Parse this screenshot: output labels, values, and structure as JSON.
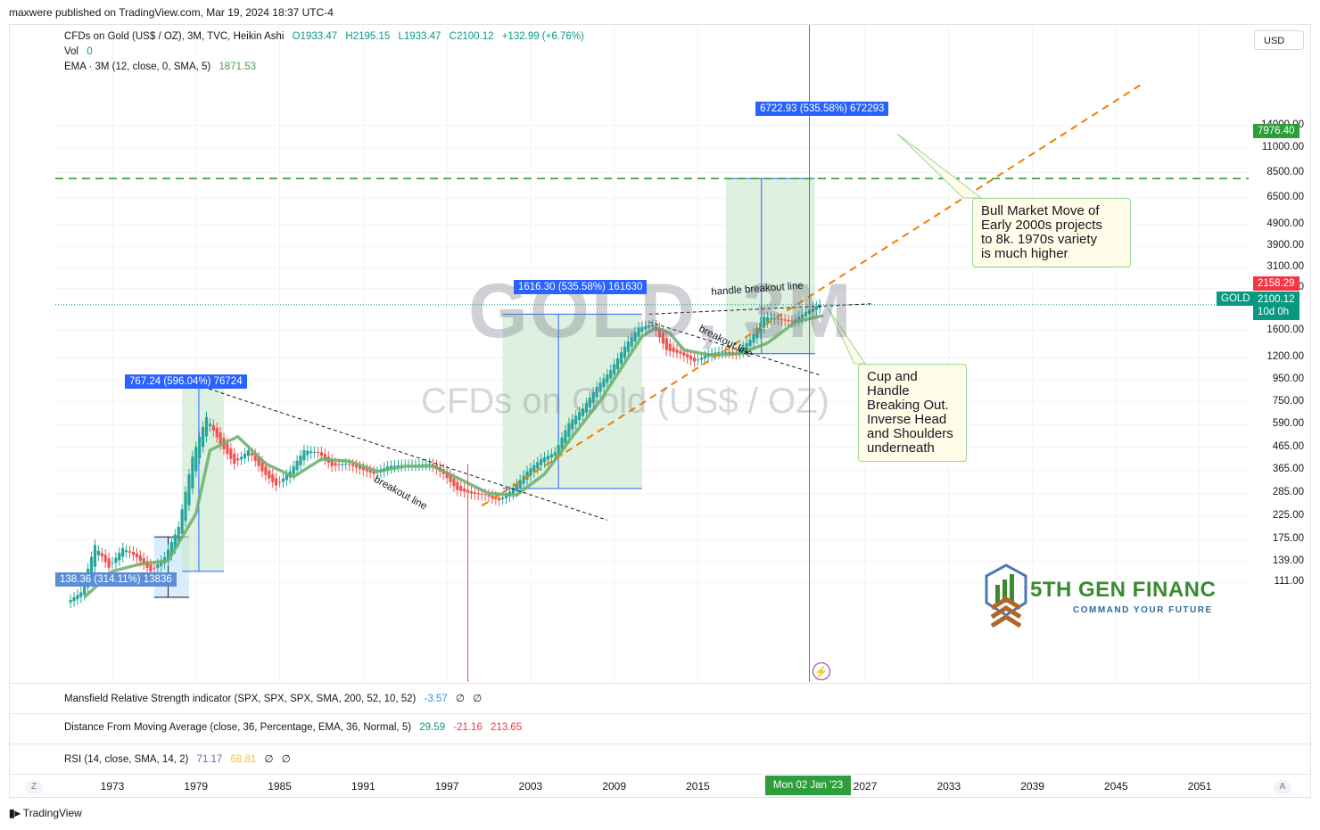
{
  "header": {
    "publisher": "maxwere published on TradingView.com, Mar 19, 2024 18:37 UTC-4"
  },
  "legend": {
    "symbol": "CFDs on Gold (US$ / OZ), 3M, TVC, Heikin Ashi",
    "ohlc": {
      "o": "O1933.47",
      "h": "H2195.15",
      "l": "L1933.47",
      "c": "C2100.12",
      "chg": "+132.99 (+6.76%)"
    },
    "vol_label": "Vol",
    "vol_value": "0",
    "ema_label": "EMA · 3M (12, close, 0, SMA, 5)",
    "ema_value": "1871.53"
  },
  "watermark": {
    "big": "GOLD, 3M",
    "sub": "CFDs on Gold (US$ / OZ)"
  },
  "currency_button": "USD",
  "y_ticks": [
    "14000.00",
    "11000.00",
    "8500.00",
    "6500.00",
    "4900.00",
    "3900.00",
    "3100.00",
    "2500.00",
    "1600.00",
    "1200.00",
    "950.00",
    "750.00",
    "590.00",
    "465.00",
    "365.00",
    "285.00",
    "225.00",
    "175.00",
    "139.00",
    "111.00"
  ],
  "price_tags": {
    "target": "7976.40",
    "high": "2158.29",
    "symbol": "GOLD",
    "last": "2100.12",
    "countdown": "10d 0h"
  },
  "x_ticks": [
    "1973",
    "1979",
    "1985",
    "1991",
    "1997",
    "2003",
    "2009",
    "2015",
    "2027",
    "2033",
    "2039",
    "2045",
    "2051"
  ],
  "cursor_date": "Mon 02 Jan '23",
  "axis_buttons": {
    "left": "Z",
    "right": "A"
  },
  "measure_labels": {
    "m1": "138.36 (314.11%) 13836",
    "m2": "767.24 (596.04%) 76724",
    "m3": "1616.30 (535.58%) 161630",
    "m4": "6722.93 (535.58%) 672293"
  },
  "line_labels": {
    "breakout1": "breakout line",
    "breakout2": "breakout line",
    "handle": "handle breakout line"
  },
  "notes": {
    "bull": "Bull Market Move of\nEarly 2000s projects\nto 8k.  1970s variety\nis much higher",
    "cup": "Cup and\nHandle\nBreaking Out.\nInverse Head\nand Shoulders\nunderneath"
  },
  "logo": {
    "name": "5TH GEN FINANC",
    "tagline": "COMMAND YOUR FUTURE"
  },
  "panes": {
    "mansfield": {
      "label": "Mansfield Relative Strength indicator (SPX, SPX, SPX, SMA, 200, 52, 10, 52)",
      "v1": "-3.57",
      "v2": "∅",
      "v3": "∅"
    },
    "dma": {
      "label": "Distance From Moving Average (close, 36, Percentage, EMA, 36, Normal, 5)",
      "v1": "29.59",
      "v2": "-21.16",
      "v3": "213.65"
    },
    "rsi": {
      "label": "RSI (14, close, SMA, 14, 2)",
      "v1": "71.17",
      "v2": "68.81",
      "v3": "∅",
      "v4": "∅"
    }
  },
  "footer": {
    "brand": "TradingView"
  },
  "colors": {
    "up": "#26a69a",
    "down": "#ef5350",
    "ema": "#6aaf6a",
    "target_line": "#2e9e3b",
    "trend": "#f57c00",
    "measure_bg": "#c8e6c9",
    "tag_blue": "#2962ff",
    "gold_tag": "#089981",
    "high_tag": "#f23645"
  },
  "chart_data": {
    "type": "candlestick",
    "title": "GOLD, 3M",
    "y_scale": "log",
    "ylim": [
      95,
      17000
    ],
    "xlim": [
      1968.0,
      2056.0
    ],
    "series": [
      {
        "name": "CFDs on Gold (US$ / OZ)",
        "kind": "heikin-ashi-close",
        "x": [
          1970,
          1971,
          1972,
          1973,
          1974,
          1975,
          1976,
          1977,
          1978,
          1979,
          1980,
          1981,
          1982,
          1983,
          1984,
          1985,
          1986,
          1987,
          1988,
          1989,
          1990,
          1991,
          1992,
          1993,
          1994,
          1995,
          1996,
          1997,
          1998,
          1999,
          2000,
          2001,
          2002,
          2003,
          2004,
          2005,
          2006,
          2007,
          2008,
          2009,
          2010,
          2011,
          2012,
          2013,
          2014,
          2015,
          2016,
          2017,
          2018,
          2019,
          2020,
          2021,
          2022,
          2023,
          2024
        ],
        "values": [
          90,
          100,
          165,
          130,
          160,
          145,
          125,
          145,
          200,
          420,
          640,
          480,
          390,
          450,
          360,
          310,
          360,
          450,
          440,
          380,
          390,
          370,
          350,
          380,
          385,
          385,
          390,
          350,
          295,
          285,
          280,
          265,
          300,
          360,
          410,
          440,
          600,
          700,
          880,
          1050,
          1350,
          1650,
          1700,
          1300,
          1250,
          1150,
          1250,
          1280,
          1250,
          1450,
          1850,
          1800,
          1750,
          1950,
          2100
        ]
      },
      {
        "name": "EMA",
        "kind": "line",
        "x": [
          1971,
          1973,
          1975,
          1977,
          1979,
          1980,
          1982,
          1984,
          1986,
          1988,
          1990,
          1992,
          1994,
          1996,
          1998,
          2000,
          2002,
          2004,
          2006,
          2008,
          2010,
          2011,
          2012,
          2013,
          2014,
          2016,
          2018,
          2020,
          2022,
          2024
        ],
        "values": [
          95,
          125,
          135,
          140,
          230,
          450,
          520,
          390,
          340,
          410,
          400,
          360,
          380,
          380,
          330,
          285,
          280,
          350,
          520,
          760,
          1200,
          1500,
          1650,
          1550,
          1300,
          1230,
          1250,
          1400,
          1750,
          1871.53
        ]
      }
    ],
    "annotations": {
      "target_level": 7976.4,
      "last_price": 2100.12,
      "session_high": 2158.29,
      "measures": [
        {
          "from_x": 1976.0,
          "to_x": 1978.5,
          "change_pct": 314.11
        },
        {
          "from_x": 1978.0,
          "to_x": 1981.0,
          "change_pct": 596.04
        },
        {
          "from_x": 2001.0,
          "to_x": 2011.0,
          "change_pct": 535.58
        },
        {
          "from_x": 2017.0,
          "to_x": 2023.4,
          "change_pct": 535.58
        }
      ]
    }
  }
}
